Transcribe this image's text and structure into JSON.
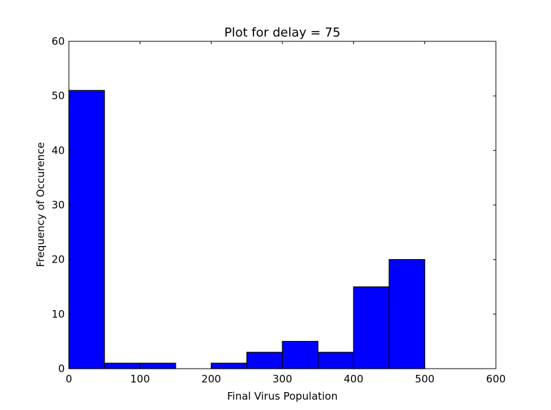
{
  "chart_data": {
    "type": "bar",
    "title": "Plot for delay = 75",
    "xlabel": "Final Virus Population",
    "ylabel": "Frequency of Occurence",
    "xlim": [
      0,
      600
    ],
    "ylim": [
      0,
      60
    ],
    "xticks": [
      0,
      100,
      200,
      300,
      400,
      500,
      600
    ],
    "yticks": [
      0,
      10,
      20,
      30,
      40,
      50,
      60
    ],
    "bins": [
      {
        "start": 0,
        "end": 50,
        "value": 51
      },
      {
        "start": 50,
        "end": 100,
        "value": 1
      },
      {
        "start": 100,
        "end": 150,
        "value": 1
      },
      {
        "start": 150,
        "end": 200,
        "value": 0
      },
      {
        "start": 200,
        "end": 250,
        "value": 1
      },
      {
        "start": 250,
        "end": 300,
        "value": 3
      },
      {
        "start": 300,
        "end": 350,
        "value": 5
      },
      {
        "start": 350,
        "end": 400,
        "value": 3
      },
      {
        "start": 400,
        "end": 450,
        "value": 15
      },
      {
        "start": 450,
        "end": 500,
        "value": 20
      }
    ],
    "bar_color": "#0000ff",
    "edge_color": "#000000",
    "grid": false
  }
}
